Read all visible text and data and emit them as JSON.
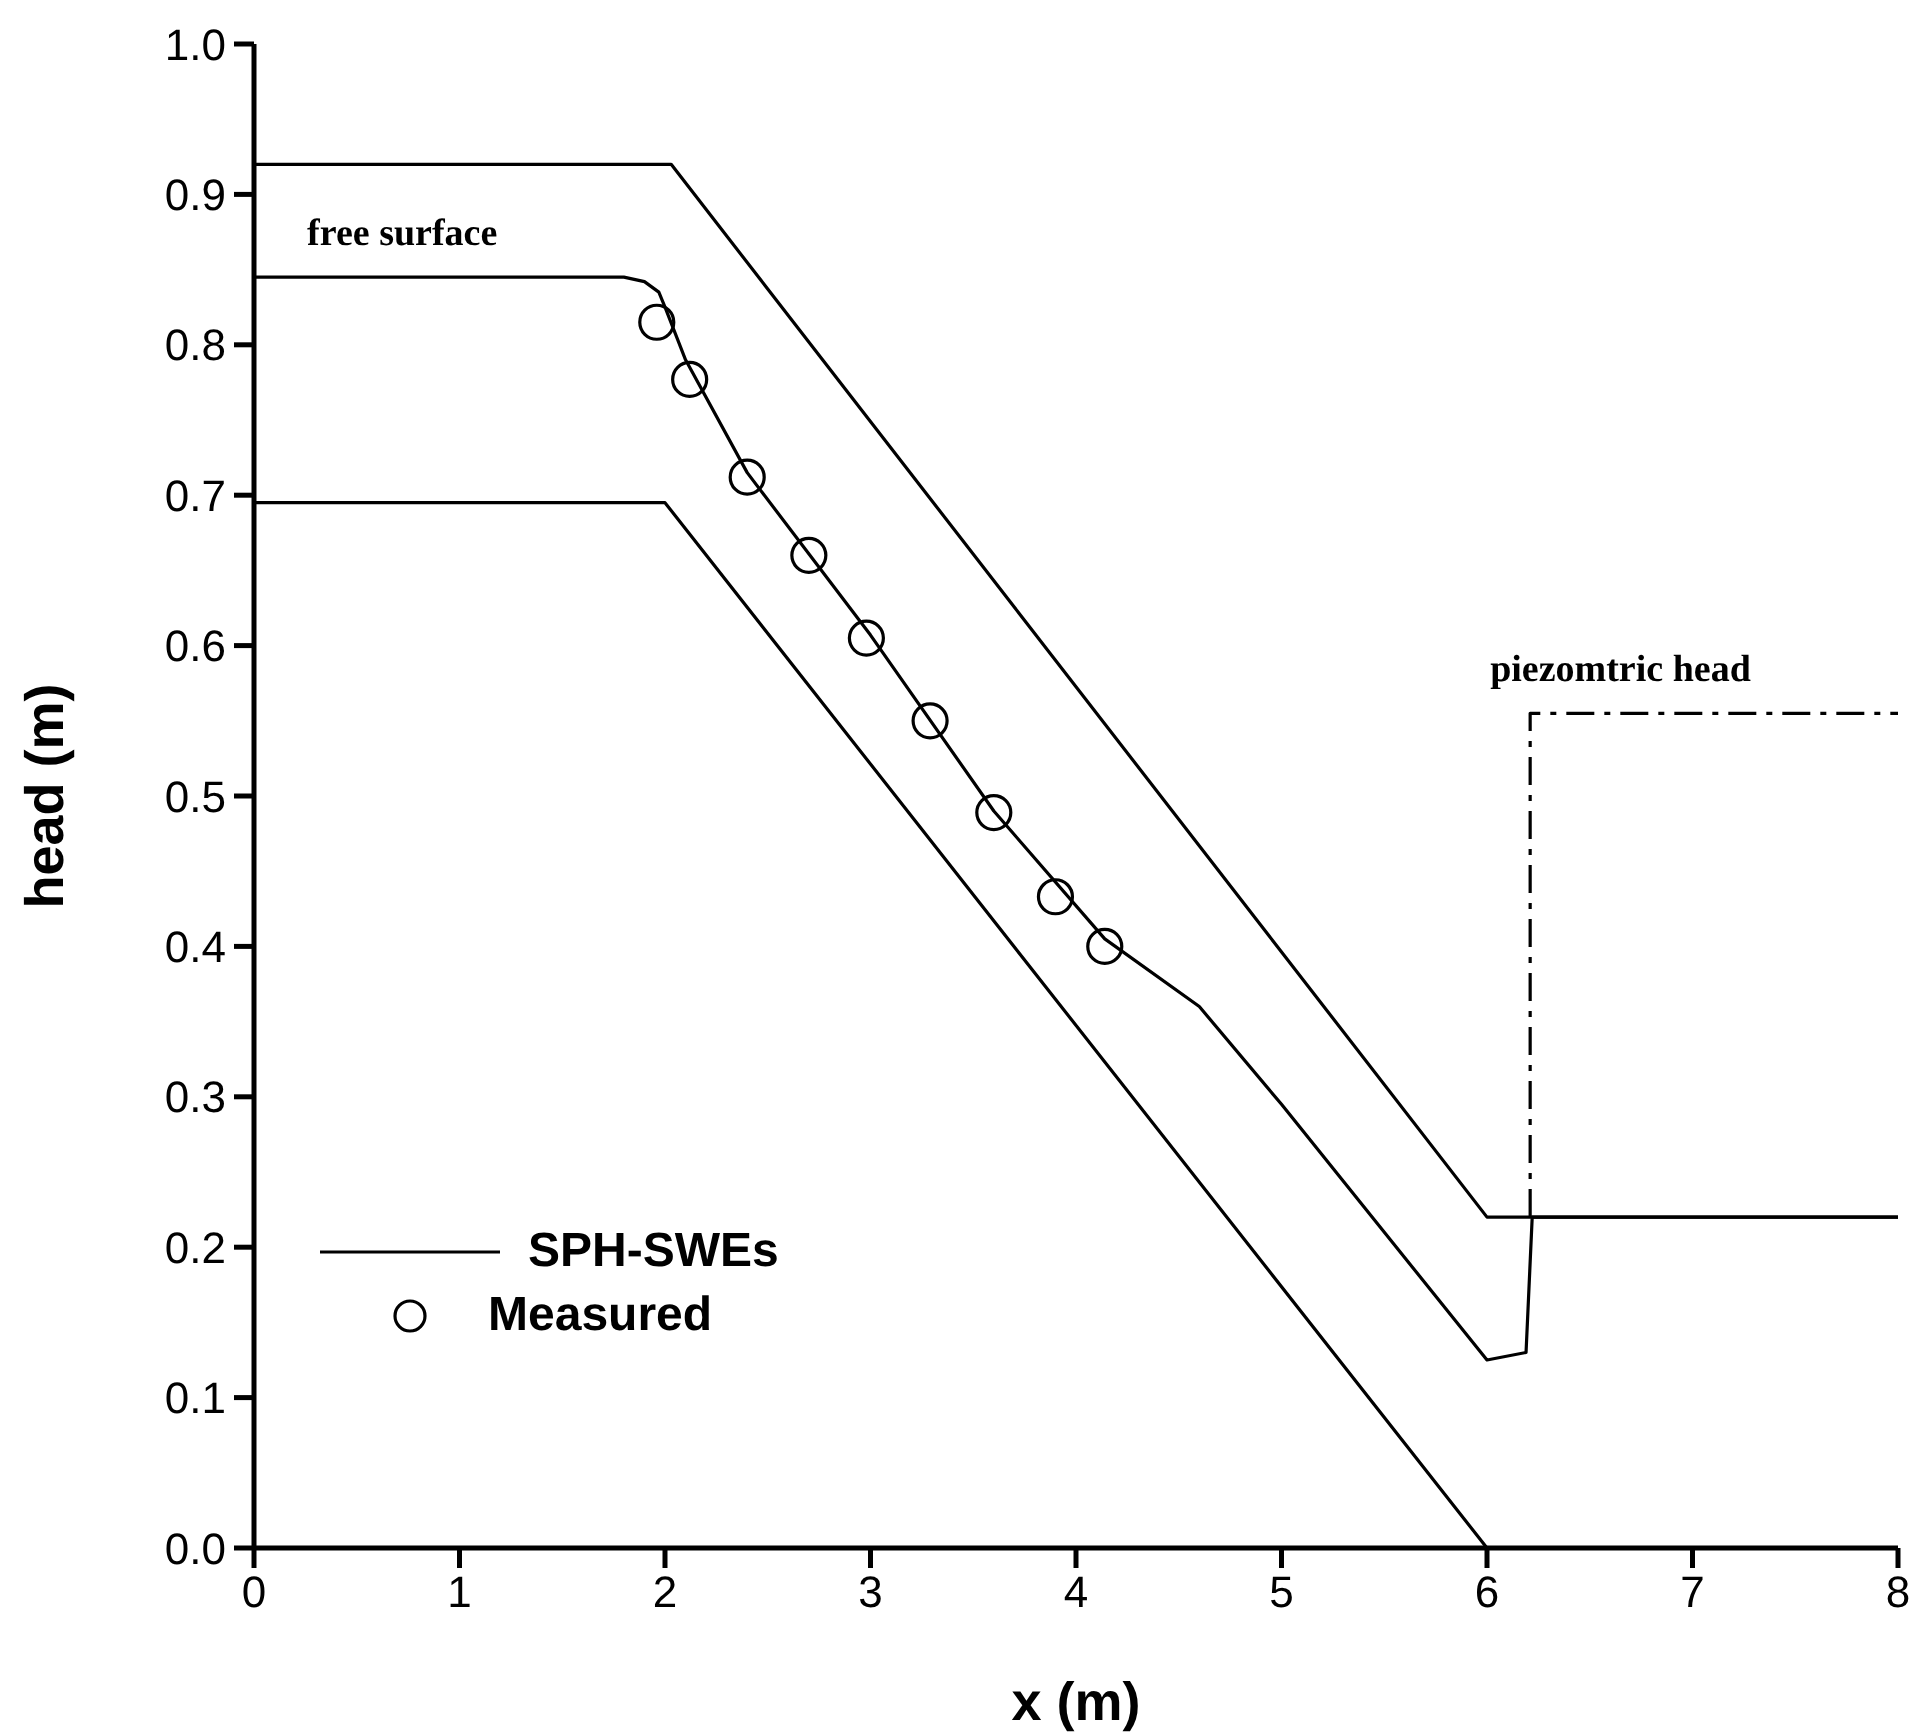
{
  "chart_data": {
    "type": "line",
    "xlabel": "x (m)",
    "ylabel": "head (m)",
    "xlim": [
      0,
      8
    ],
    "xticks": [
      0,
      1,
      2,
      3,
      4,
      5,
      6,
      7,
      8
    ],
    "ylim": [
      0,
      1
    ],
    "yticks": [
      {
        "value": 0,
        "label": "0.0"
      },
      0.1,
      0.2,
      0.3,
      0.4,
      0.5,
      0.6,
      0.7,
      0.8,
      0.9,
      {
        "value": 1,
        "label": "1.0"
      }
    ],
    "legend": "bottom left",
    "marker": "none",
    "series": [
      {
        "color": "#000000",
        "line_style": "solid",
        "x": [
          0,
          2.03,
          6,
          8
        ],
        "values": [
          0.92,
          0.92,
          0.22,
          0.22
        ]
      },
      {
        "name": "SPH-SWEs",
        "color": "#000000",
        "line_style": "solid",
        "x": [
          0,
          1.8,
          1.9,
          1.97,
          2.0,
          2.1,
          2.4,
          3.0,
          3.6,
          4.14,
          4.6,
          5,
          6,
          6.19,
          6.22,
          8
        ],
        "values": [
          0.845,
          0.845,
          0.842,
          0.835,
          0.825,
          0.79,
          0.715,
          0.607,
          0.49,
          0.405,
          0.36,
          0.295,
          0.125,
          0.13,
          0.22,
          0.22
        ]
      },
      {
        "color": "#000000",
        "line_style": "solid",
        "x": [
          0,
          2.0,
          6
        ],
        "values": [
          0.695,
          0.695,
          0
        ]
      },
      {
        "color": "#000000",
        "line_style": "dashed",
        "x": [
          6.21,
          6.21,
          8
        ],
        "values": [
          0.22,
          0.555,
          0.555
        ]
      },
      {
        "name": "Measured",
        "type": "scatter",
        "color": "#000000",
        "marker": "circle",
        "x": [
          1.96,
          2.12,
          2.4,
          2.7,
          2.98,
          3.29,
          3.6,
          3.9,
          4.14
        ],
        "values": [
          0.815,
          0.777,
          0.712,
          0.66,
          0.605,
          0.55,
          0.489,
          0.433,
          0.4
        ]
      }
    ],
    "annotations": [
      {
        "text": "free surface",
        "x": 0.2,
        "y": 0.845
      },
      {
        "text": "piezomtric head",
        "x": 6.21,
        "y": 0.555
      }
    ]
  }
}
